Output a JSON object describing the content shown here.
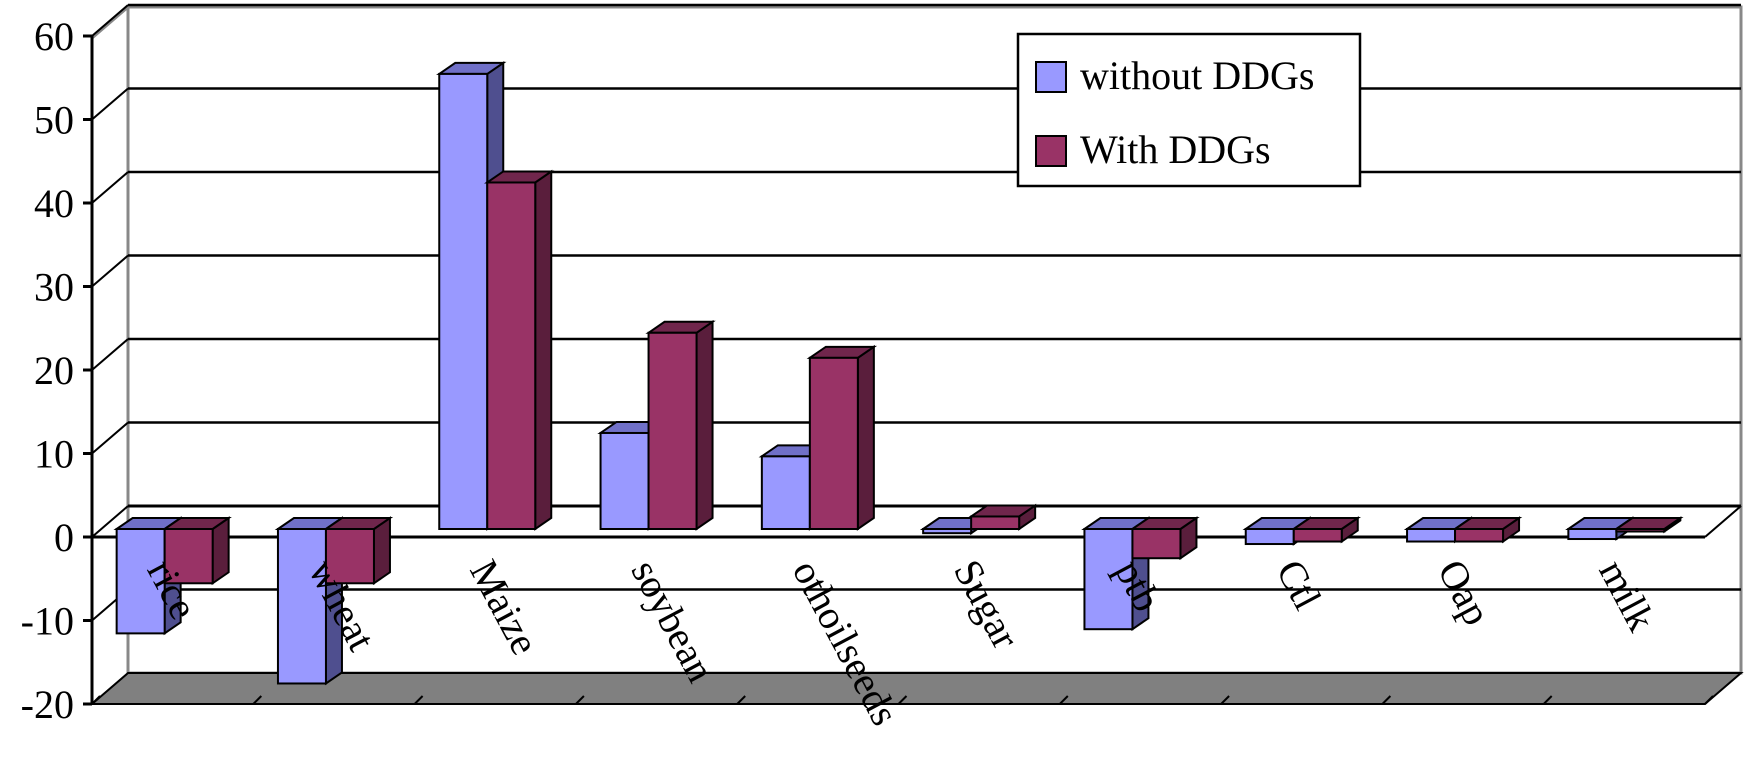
{
  "chart_data": {
    "type": "bar",
    "categories": [
      "rice",
      "wheat",
      "Maize",
      "soybean",
      "othoilseeds",
      "Sugar",
      "ptb",
      "Ctl",
      "Oap",
      "milk"
    ],
    "series": [
      {
        "name": "without DDGs",
        "values": [
          -12.5,
          -18.5,
          54.5,
          11.5,
          8.7,
          -0.5,
          -12,
          -1.8,
          -1.5,
          -1.2
        ]
      },
      {
        "name": "With DDGs",
        "values": [
          -6.5,
          -6.5,
          41.5,
          23.5,
          20.5,
          1.5,
          -3.5,
          -1.5,
          -1.5,
          -0.3
        ]
      }
    ],
    "colors": [
      "#9999ff",
      "#993366"
    ],
    "side_colors": [
      "#4f4f8f",
      "#5a1e3c"
    ],
    "top_colors": [
      "#7070c8",
      "#70264c"
    ],
    "yticks": [
      60,
      50,
      40,
      30,
      20,
      10,
      0,
      -10,
      -20
    ],
    "ylim": [
      -20,
      60
    ],
    "grid": true,
    "legend_position": "top-right",
    "title": "",
    "xlabel": "",
    "ylabel": ""
  }
}
